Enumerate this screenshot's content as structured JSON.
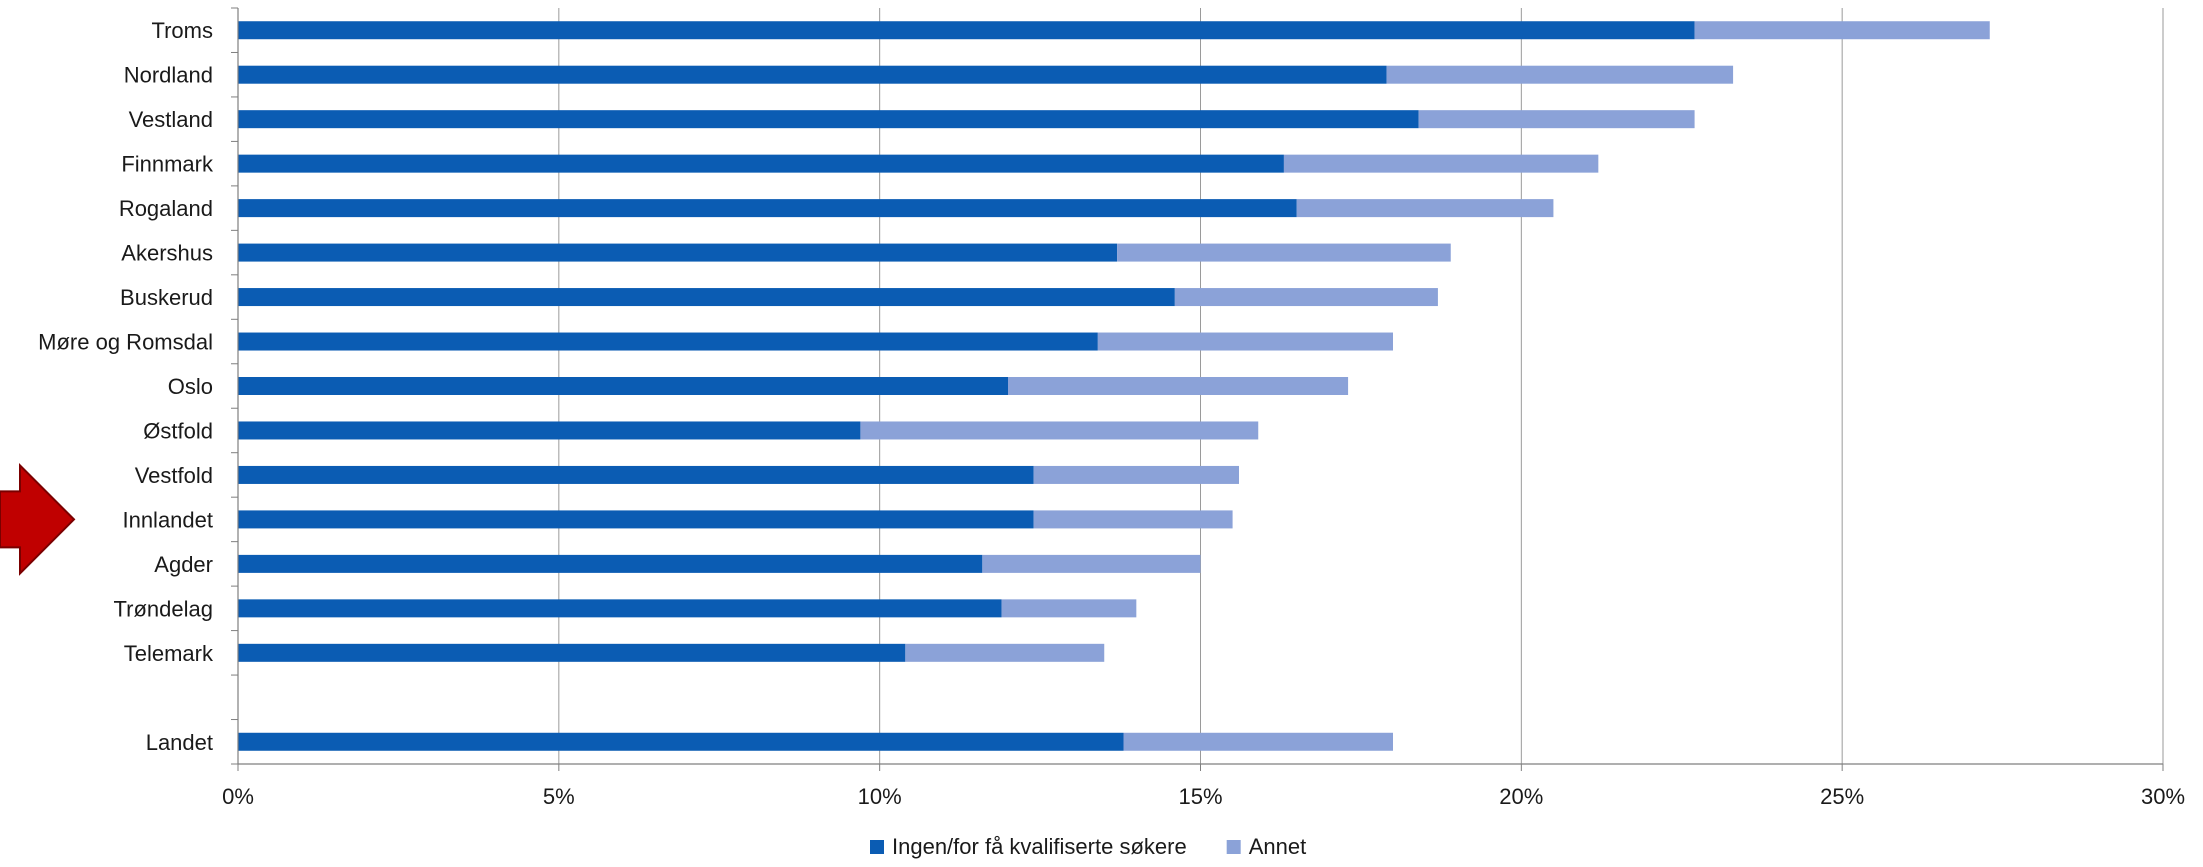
{
  "chart_data": {
    "type": "bar",
    "orientation": "horizontal",
    "stacked": true,
    "categories": [
      "Troms",
      "Nordland",
      "Vestland",
      "Finnmark",
      "Rogaland",
      "Akershus",
      "Buskerud",
      "Møre og Romsdal",
      "Oslo",
      "Østfold",
      "Vestfold",
      "Innlandet",
      "Agder",
      "Trøndelag",
      "Telemark",
      "",
      "Landet"
    ],
    "series": [
      {
        "name": "Ingen/for få kvalifiserte søkere",
        "color": "#0b5cb3",
        "values": [
          22.7,
          17.9,
          18.4,
          16.3,
          16.5,
          13.7,
          14.6,
          13.4,
          12.0,
          9.7,
          12.4,
          12.4,
          11.6,
          11.9,
          10.4,
          null,
          13.8
        ]
      },
      {
        "name": "Annet",
        "color": "#8ba2d8",
        "values": [
          4.6,
          5.4,
          4.3,
          4.9,
          4.0,
          5.2,
          4.1,
          4.6,
          5.3,
          6.2,
          3.2,
          3.1,
          3.4,
          2.1,
          3.1,
          null,
          4.2
        ]
      }
    ],
    "title": "",
    "xlabel": "",
    "ylabel": "",
    "xlim": [
      0,
      30
    ],
    "x_ticks": [
      "0%",
      "5%",
      "10%",
      "15%",
      "20%",
      "25%",
      "30%"
    ],
    "grid": "vertical",
    "legend_position": "bottom",
    "highlight": {
      "category": "Innlandet",
      "marker": "arrow",
      "color": "#c00000"
    }
  }
}
